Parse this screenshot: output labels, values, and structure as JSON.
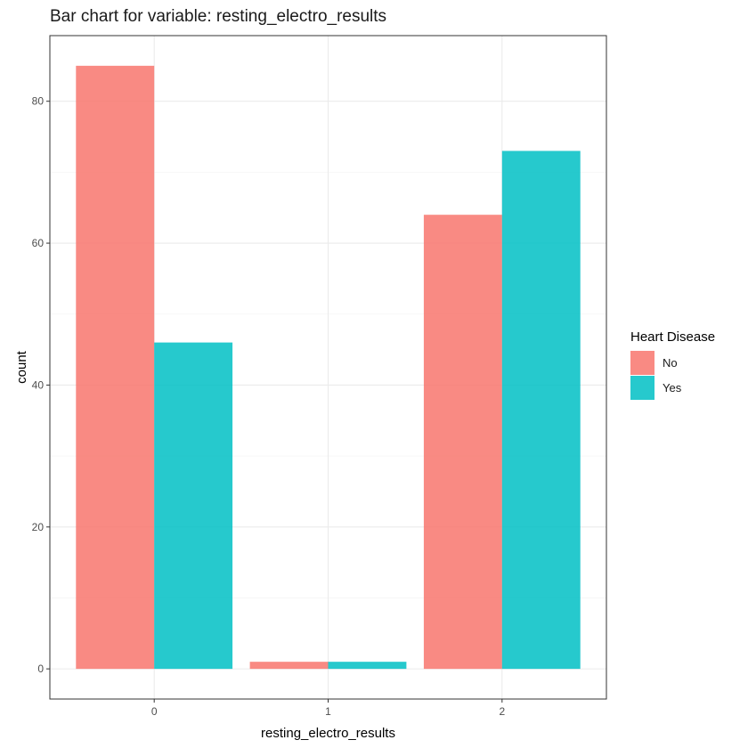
{
  "chart_data": {
    "type": "bar",
    "title": "Bar chart for variable: resting_electro_results",
    "xlabel": "resting_electro_results",
    "ylabel": "count",
    "categories": [
      "0",
      "1",
      "2"
    ],
    "series": [
      {
        "name": "No",
        "color": "#F8766D",
        "values": [
          85,
          1,
          64
        ]
      },
      {
        "name": "Yes",
        "color": "#00BFC4",
        "values": [
          46,
          1,
          73
        ]
      }
    ],
    "ylim": [
      -4.25,
      89.25
    ],
    "yticks": [
      0,
      20,
      40,
      60,
      80
    ],
    "legend": {
      "title": "Heart Disease",
      "position": "right"
    },
    "grid": true
  }
}
